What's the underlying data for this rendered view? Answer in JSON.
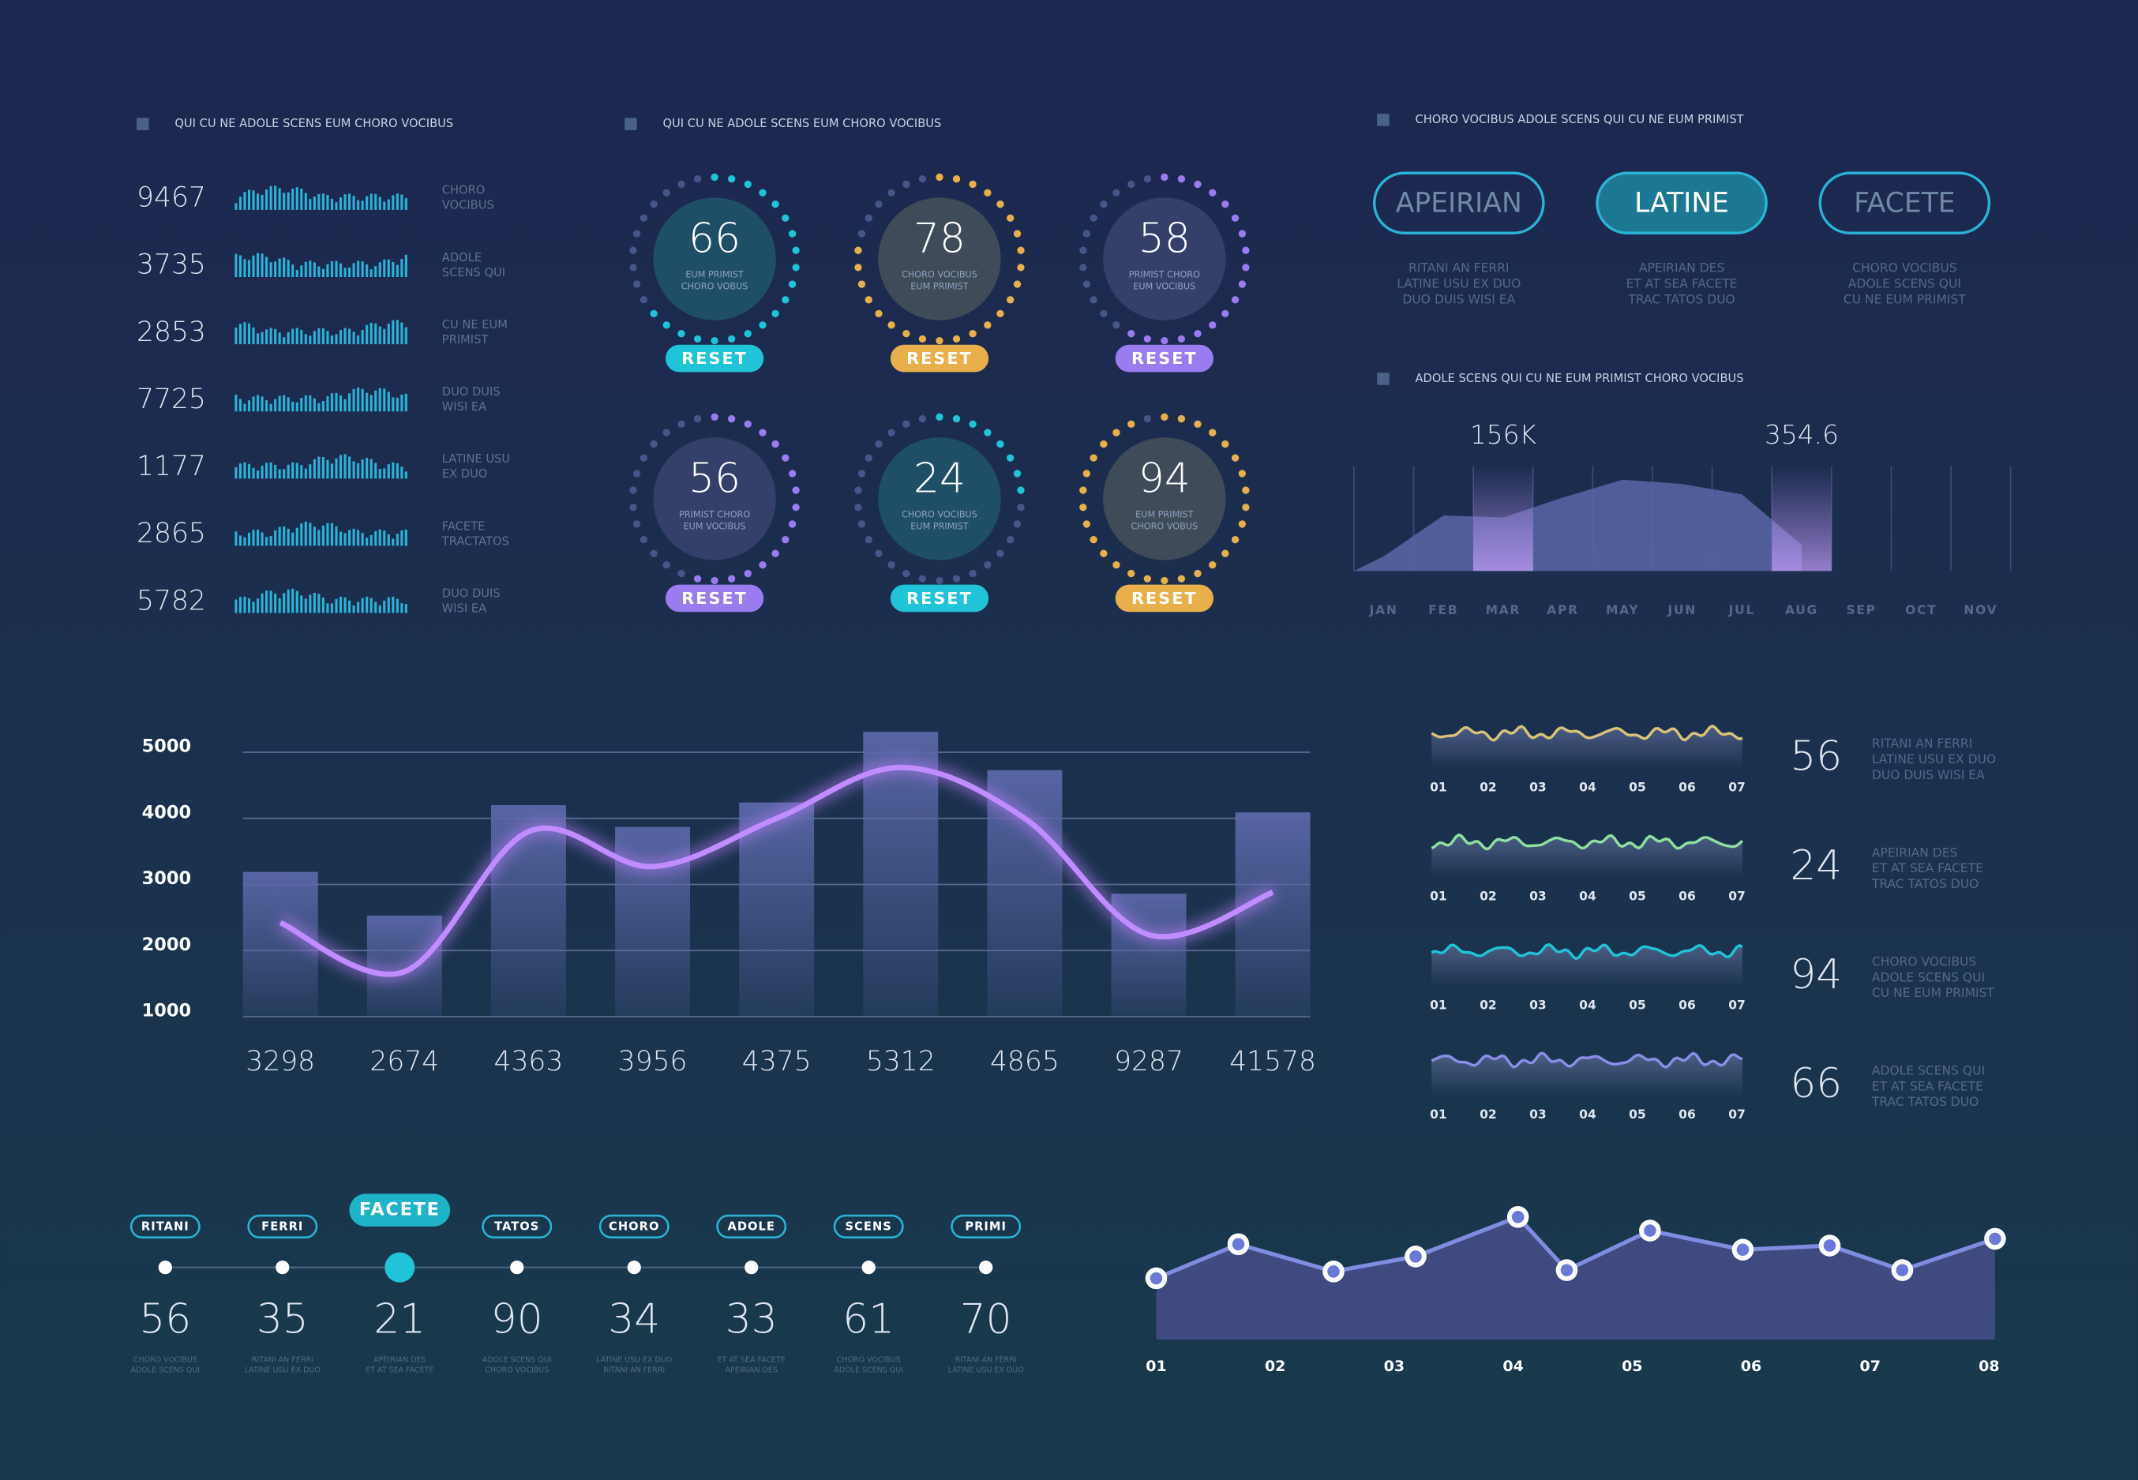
{
  "list": {
    "title": "QUI CU NE ADOLE SCENS EUM CHORO VOCIBUS",
    "rows": [
      {
        "value": 9467,
        "label": [
          "CHORO",
          "VOCIBUS"
        ]
      },
      {
        "value": 3735,
        "label": [
          "ADOLE",
          "SCENS QUI"
        ]
      },
      {
        "value": 2853,
        "label": [
          "CU NE EUM",
          "PRIMIST"
        ]
      },
      {
        "value": 7725,
        "label": [
          "DUO DUIS",
          "WISI EA"
        ]
      },
      {
        "value": 1177,
        "label": [
          "LATINE USU",
          "EX DUO"
        ]
      },
      {
        "value": 2865,
        "label": [
          "FACETE",
          "TRACTATOS"
        ]
      },
      {
        "value": 5782,
        "label": [
          "DUO DUIS",
          "WISI EA"
        ]
      }
    ]
  },
  "gauges": {
    "title": "QUI CU NE ADOLE SCENS EUM CHORO VOCIBUS",
    "items": [
      {
        "value": 66,
        "caption": [
          "EUM PRIMIST",
          "CHORO VOBUS"
        ],
        "button": "RESET",
        "color": "#21c3d9"
      },
      {
        "value": 78,
        "caption": [
          "CHORO VOCIBUS",
          "EUM PRIMIST"
        ],
        "button": "RESET",
        "color": "#e8b04a"
      },
      {
        "value": 58,
        "caption": [
          "PRIMIST CHORO",
          "EUM VOCIBUS"
        ],
        "button": "RESET",
        "color": "#9a7bf0"
      },
      {
        "value": 56,
        "caption": [
          "PRIMIST CHORO",
          "EUM VOCIBUS"
        ],
        "button": "RESET",
        "color": "#9a7bf0"
      },
      {
        "value": 24,
        "caption": [
          "CHORO VOCIBUS",
          "EUM PRIMIST"
        ],
        "button": "RESET",
        "color": "#21c3d9"
      },
      {
        "value": 94,
        "caption": [
          "EUM PRIMIST",
          "CHORO VOBUS"
        ],
        "button": "RESET",
        "color": "#e8b04a"
      }
    ]
  },
  "buttons": {
    "title": "CHORO VOCIBUS ADOLE SCENS QUI CU NE EUM PRIMIST",
    "items": [
      {
        "label": "APEIRIAN",
        "caption": [
          "RITANI AN FERRI",
          "LATINE USU EX DUO",
          "DUO DUIS WISI EA"
        ],
        "active": false
      },
      {
        "label": "LATINE",
        "caption": [
          "APEIRIAN DES",
          "ET AT SEA FACETE",
          "TRAC TATOS DUO"
        ],
        "active": true
      },
      {
        "label": "FACETE",
        "caption": [
          "CHORO VOCIBUS",
          "ADOLE SCENS QUI",
          "CU NE EUM PRIMIST"
        ],
        "active": false
      }
    ]
  },
  "area": {
    "title": "ADOLE SCENS QUI CU NE EUM PRIMIST CHORO VOCIBUS",
    "categories": [
      "JAN",
      "FEB",
      "MAR",
      "APR",
      "MAY",
      "JUN",
      "JUL",
      "AUG",
      "SEP",
      "OCT",
      "NOV"
    ],
    "values": [
      14,
      53,
      51,
      70,
      87,
      83,
      73,
      25,
      null,
      null,
      null
    ],
    "ylim": [
      0,
      100
    ],
    "annotations": [
      {
        "text": "156K",
        "category": "MAR"
      },
      {
        "text": "354.6",
        "category": "AUG"
      }
    ]
  },
  "waves": {
    "ticks": [
      "01",
      "02",
      "03",
      "04",
      "05",
      "06",
      "07"
    ],
    "items": [
      {
        "value": 56,
        "caption": [
          "RITANI AN FERRI",
          "LATINE USU EX DUO",
          "DUO DUIS WISI EA"
        ],
        "color": "#d9c27a"
      },
      {
        "value": 24,
        "caption": [
          "APEIRIAN DES",
          "ET AT SEA FACETE",
          "TRAC TATOS DUO"
        ],
        "color": "#8fe0a0"
      },
      {
        "value": 94,
        "caption": [
          "CHORO VOCIBUS",
          "ADOLE SCENS QUI",
          "CU NE EUM PRIMIST"
        ],
        "color": "#21c3d9"
      },
      {
        "value": 66,
        "caption": [
          "ADOLE SCENS QUI",
          "ET AT SEA FACETE",
          "TRAC TATOS DUO"
        ],
        "color": "#8a8ee8"
      }
    ]
  },
  "bars": {
    "type": "bar",
    "categories": [
      "3298",
      "2674",
      "4363",
      "3956",
      "4375",
      "5312",
      "4865",
      "9287",
      "41578"
    ],
    "values": [
      3190,
      2530,
      4200,
      3870,
      4240,
      5310,
      4730,
      2860,
      4090
    ],
    "line": [
      2420,
      1680,
      3800,
      3270,
      4000,
      4770,
      4000,
      2240,
      2880
    ],
    "ylim": [
      1000,
      5400
    ],
    "yticks": [
      1000,
      2000,
      3000,
      4000,
      5000
    ],
    "grid": true
  },
  "timeline": {
    "items": [
      {
        "tag": "RITANI",
        "value": 56,
        "caption": [
          "CHORO VOCIBUS",
          "ADOLE SCENS QUI"
        ],
        "active": false
      },
      {
        "tag": "FERRI",
        "value": 35,
        "caption": [
          "RITANI AN FERRI",
          "LATINE USU EX DUO"
        ],
        "active": false
      },
      {
        "tag": "FACETE",
        "value": 21,
        "caption": [
          "APEIRIAN DES",
          "ET AT SEA FACETE"
        ],
        "active": true
      },
      {
        "tag": "TATOS",
        "value": 90,
        "caption": [
          "ADOLE SCENS QUI",
          "CHORO VOCIBUS"
        ],
        "active": false
      },
      {
        "tag": "CHORO",
        "value": 34,
        "caption": [
          "LATINE USU EX DUO",
          "RITANI AN FERRI"
        ],
        "active": false
      },
      {
        "tag": "ADOLE",
        "value": 33,
        "caption": [
          "ET AT SEA FACETE",
          "APEIRIAN DES"
        ],
        "active": false
      },
      {
        "tag": "SCENS",
        "value": 61,
        "caption": [
          "CHORO VOCIBUS",
          "ADOLE SCENS QUI"
        ],
        "active": false
      },
      {
        "tag": "PRIMI",
        "value": 70,
        "caption": [
          "RITANI AN FERRI",
          "LATINE USU EX DUO"
        ],
        "active": false
      }
    ]
  },
  "line": {
    "type": "line",
    "x": [
      1,
      1.69,
      2.49,
      3.18,
      4.04,
      4.45,
      5.15,
      5.93,
      6.66,
      7.27,
      8.05
    ],
    "values": [
      45,
      70,
      50,
      61,
      90,
      51,
      80,
      66,
      69,
      51,
      74
    ],
    "xlim": [
      1,
      8
    ],
    "ylim": [
      0,
      100
    ],
    "xticks": [
      {
        "value": 1,
        "label": "01"
      },
      {
        "value": 2,
        "label": "02"
      },
      {
        "value": 3,
        "label": "03"
      },
      {
        "value": 4,
        "label": "04"
      },
      {
        "value": 5,
        "label": "05"
      },
      {
        "value": 6,
        "label": "06"
      },
      {
        "value": 7,
        "label": "07"
      },
      {
        "value": 8,
        "label": "08"
      }
    ]
  }
}
